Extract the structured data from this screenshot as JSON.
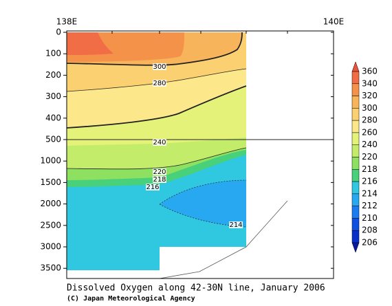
{
  "chart_data": {
    "type": "contour",
    "title": "Dissolved Oxygen along 42-30N line, January 2006",
    "credit": "(C) Japan Meteorological Agency",
    "xlim": [
      138,
      140
    ],
    "xticks": [
      {
        "value": 138,
        "label": "138E"
      },
      {
        "value": 140,
        "label": "140E"
      }
    ],
    "yticks": [
      0,
      100,
      200,
      300,
      400,
      500,
      1000,
      1500,
      2000,
      2500,
      3000,
      3500
    ],
    "contour_labels": [
      300,
      280,
      240,
      220,
      218,
      216,
      214
    ],
    "colorbar": {
      "levels": [
        360,
        340,
        320,
        300,
        280,
        260,
        240,
        220,
        218,
        216,
        214,
        212,
        210,
        208,
        206
      ],
      "colors": [
        "#e8553a",
        "#f06d45",
        "#f5924a",
        "#f8b45a",
        "#fbd070",
        "#fce88a",
        "#e4f27a",
        "#c2ec6a",
        "#8ee060",
        "#48d07a",
        "#30c8e0",
        "#28a8f0",
        "#1a7cf0",
        "#1050e0",
        "#0a30c8",
        "#0a1aa0"
      ]
    }
  }
}
